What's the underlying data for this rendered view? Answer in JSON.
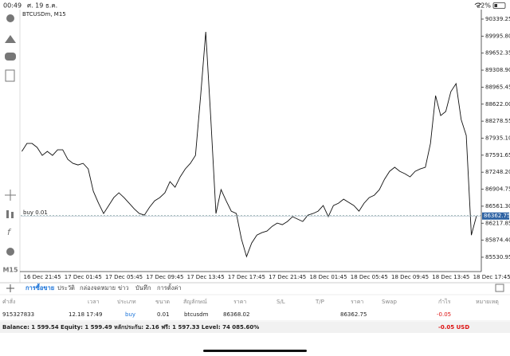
{
  "status_bar": {
    "time": "00:49",
    "date": "ศ. 19 ธ.ค.",
    "battery": "22%"
  },
  "chart": {
    "type": "line",
    "title": "BTCUSDm, M15",
    "color": "#111111",
    "categories": [
      null,
      null,
      null,
      null,
      "16 Dec 21:45",
      null,
      null,
      null,
      null,
      null,
      null,
      null,
      "17 Dec 01:45",
      null,
      null,
      null,
      null,
      null,
      null,
      null,
      "17 Dec 05:45",
      null,
      null,
      null,
      null,
      null,
      null,
      null,
      "17 Dec 09:45",
      null,
      null,
      null,
      null,
      null,
      null,
      null,
      "17 Dec 13:45",
      null,
      null,
      null,
      null,
      null,
      null,
      null,
      "17 Dec 17:45",
      null,
      null,
      null,
      null,
      null,
      null,
      null,
      "17 Dec 21:45",
      null,
      null,
      null,
      null,
      null,
      null,
      null,
      "18 Dec 01:45",
      null,
      null,
      null,
      null,
      null,
      null,
      null,
      "18 Dec 05:45",
      null,
      null,
      null,
      null,
      null,
      null,
      null,
      "18 Dec 09:45",
      null,
      null,
      null,
      null,
      null,
      null,
      null,
      "18 Dec 13:45",
      null,
      null,
      null,
      null,
      null,
      null,
      null,
      "18 Dec 17:45"
    ],
    "values": [
      87668,
      87829,
      87829,
      87748,
      87587,
      87668,
      87587,
      87700,
      87700,
      87507,
      87426,
      87394,
      87426,
      87314,
      86863,
      86622,
      86413,
      86574,
      86735,
      86831,
      86735,
      86622,
      86509,
      86413,
      86381,
      86542,
      86670,
      86735,
      86831,
      87057,
      86944,
      87153,
      87314,
      87426,
      87587,
      88794,
      90081,
      88312,
      86413,
      86896,
      86670,
      86461,
      86413,
      85898,
      85544,
      85817,
      85978,
      86027,
      86059,
      86155,
      86220,
      86188,
      86252,
      86349,
      86301,
      86252,
      86381,
      86413,
      86461,
      86574,
      86349,
      86574,
      86622,
      86703,
      86638,
      86574,
      86461,
      86622,
      86735,
      86783,
      86896,
      87105,
      87266,
      87347,
      87266,
      87217,
      87153,
      87266,
      87314,
      87347,
      87829,
      88794,
      88392,
      88473,
      88875,
      89036,
      88312,
      87990,
      85978,
      86362.75,
      null,
      null,
      null
    ],
    "ylim": [
      85257,
      90516
    ],
    "yticks": [
      {
        "value": 90339.25,
        "label": "90339.25"
      },
      {
        "value": 89995.8,
        "label": "89995.80"
      },
      {
        "value": 89652.35,
        "label": "89652.35"
      },
      {
        "value": 89308.9,
        "label": "89308.90"
      },
      {
        "value": 88965.45,
        "label": "88965.45"
      },
      {
        "value": 88622,
        "label": "88622.00"
      },
      {
        "value": 88278.55,
        "label": "88278.55"
      },
      {
        "value": 87935.1,
        "label": "87935.10"
      },
      {
        "value": 87591.65,
        "label": "87591.65"
      },
      {
        "value": 87248.2,
        "label": "87248.20"
      },
      {
        "value": 86904.75,
        "label": "86904.75"
      },
      {
        "value": 86561.3,
        "label": "86561.30"
      },
      {
        "value": 86217.85,
        "label": "86217.85"
      },
      {
        "value": 85874.4,
        "label": "85874.40"
      },
      {
        "value": 85530.95,
        "label": "85530.95"
      }
    ],
    "order_line": {
      "label": "buy 0.01",
      "price": 86368.02
    },
    "bid": 86362.75
  },
  "sidebar": {
    "timeframe": "M15"
  },
  "tabs": [
    "การซื้อขาย",
    "ประวัติ",
    "กล่องจดหมาย",
    "ข่าว",
    "บันทึก",
    "การตั้งค่า"
  ],
  "table": {
    "header": [
      "คำสั่ง",
      "เวลา",
      "ประเภท",
      "ขนาด",
      "สัญลักษณ์",
      "ราคา",
      "S/L",
      "T/P",
      "ราคา",
      "Swap",
      "กำไร",
      "หมายเหตุ"
    ],
    "rows": [
      [
        "915327833",
        "12.18 17:49",
        "buy",
        "0.01",
        "btcusdm",
        "86368.02",
        "86362.75",
        "-0.05"
      ]
    ]
  },
  "account": {
    "summary": "Balance: 1 599.54 Equity: 1 599.49 หลักประกัน: 2.16 ฟรี: 1 597.33 Level: 74 085.60%",
    "profit": "-0.05 USD"
  }
}
